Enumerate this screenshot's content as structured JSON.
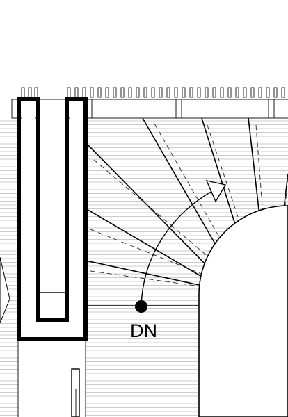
{
  "plan": {
    "direction_label": "DN",
    "line_color": "#000000",
    "hatch_color": "#9a9a9a",
    "background": "#ffffff"
  }
}
